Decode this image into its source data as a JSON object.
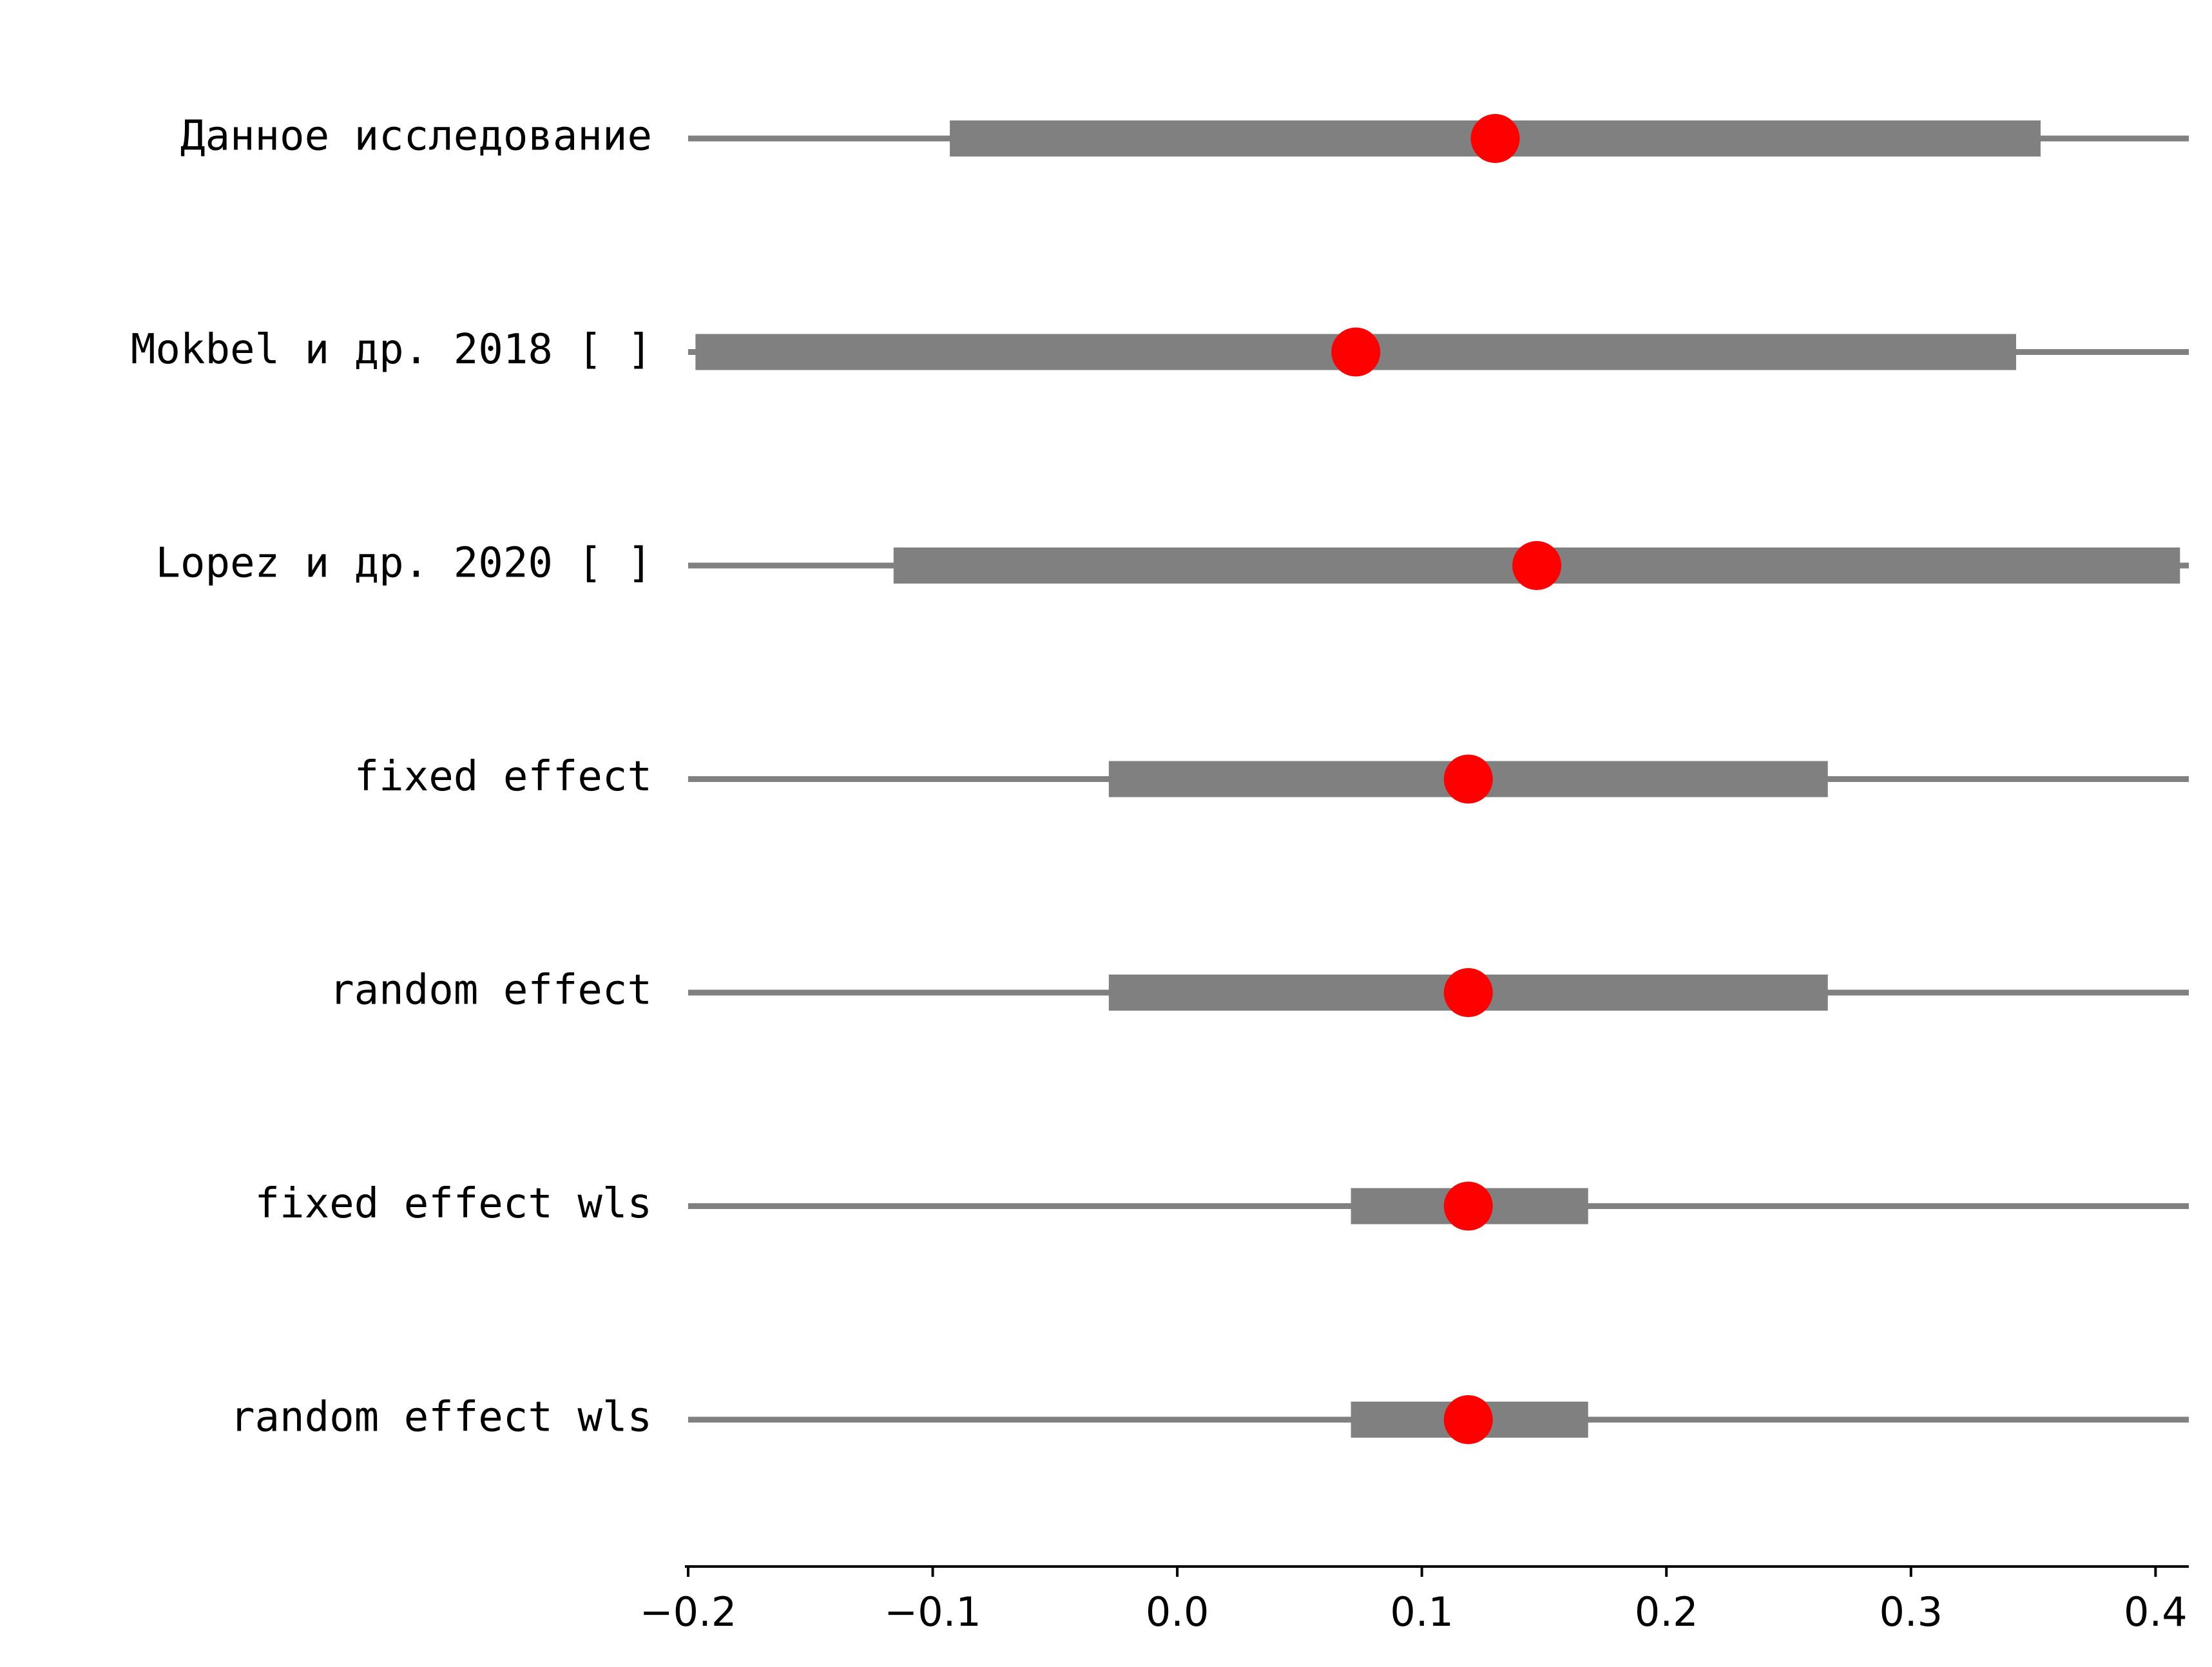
{
  "chart_data": {
    "type": "forest",
    "rows": [
      {
        "label": "Данное исследование",
        "estimate": 0.13,
        "ci_inner": [
          -0.093,
          0.353
        ],
        "ci_outer": [
          -0.2,
          0.415
        ]
      },
      {
        "label": "Mokbel и др. 2018 [ ]",
        "estimate": 0.073,
        "ci_inner": [
          -0.197,
          0.343
        ],
        "ci_outer": [
          -0.2,
          0.415
        ]
      },
      {
        "label": "Lopez и др. 2020 [ ]",
        "estimate": 0.147,
        "ci_inner": [
          -0.116,
          0.41
        ],
        "ci_outer": [
          -0.2,
          0.415
        ]
      },
      {
        "label": "fixed effect",
        "estimate": 0.119,
        "ci_inner": [
          -0.028,
          0.266
        ],
        "ci_outer": [
          -0.2,
          0.415
        ]
      },
      {
        "label": "random effect",
        "estimate": 0.119,
        "ci_inner": [
          -0.028,
          0.266
        ],
        "ci_outer": [
          -0.2,
          0.415
        ]
      },
      {
        "label": "fixed effect wls",
        "estimate": 0.119,
        "ci_inner": [
          0.071,
          0.168
        ],
        "ci_outer": [
          -0.2,
          0.415
        ]
      },
      {
        "label": "random effect wls",
        "estimate": 0.119,
        "ci_inner": [
          0.071,
          0.168
        ],
        "ci_outer": [
          -0.2,
          0.415
        ]
      }
    ],
    "xlim": [
      -0.2,
      0.415
    ],
    "xticks": [
      {
        "value": -0.2,
        "label": "−0.2"
      },
      {
        "value": -0.1,
        "label": "−0.1"
      },
      {
        "value": 0.0,
        "label": "0.0"
      },
      {
        "value": 0.1,
        "label": "0.1"
      },
      {
        "value": 0.2,
        "label": "0.2"
      },
      {
        "value": 0.3,
        "label": "0.3"
      },
      {
        "value": 0.4,
        "label": "0.4"
      }
    ],
    "title": "",
    "xlabel": "",
    "ylabel": "",
    "grid": false,
    "colors": {
      "point": "#ff0000",
      "interval": "#808080",
      "axis": "#000000"
    }
  }
}
